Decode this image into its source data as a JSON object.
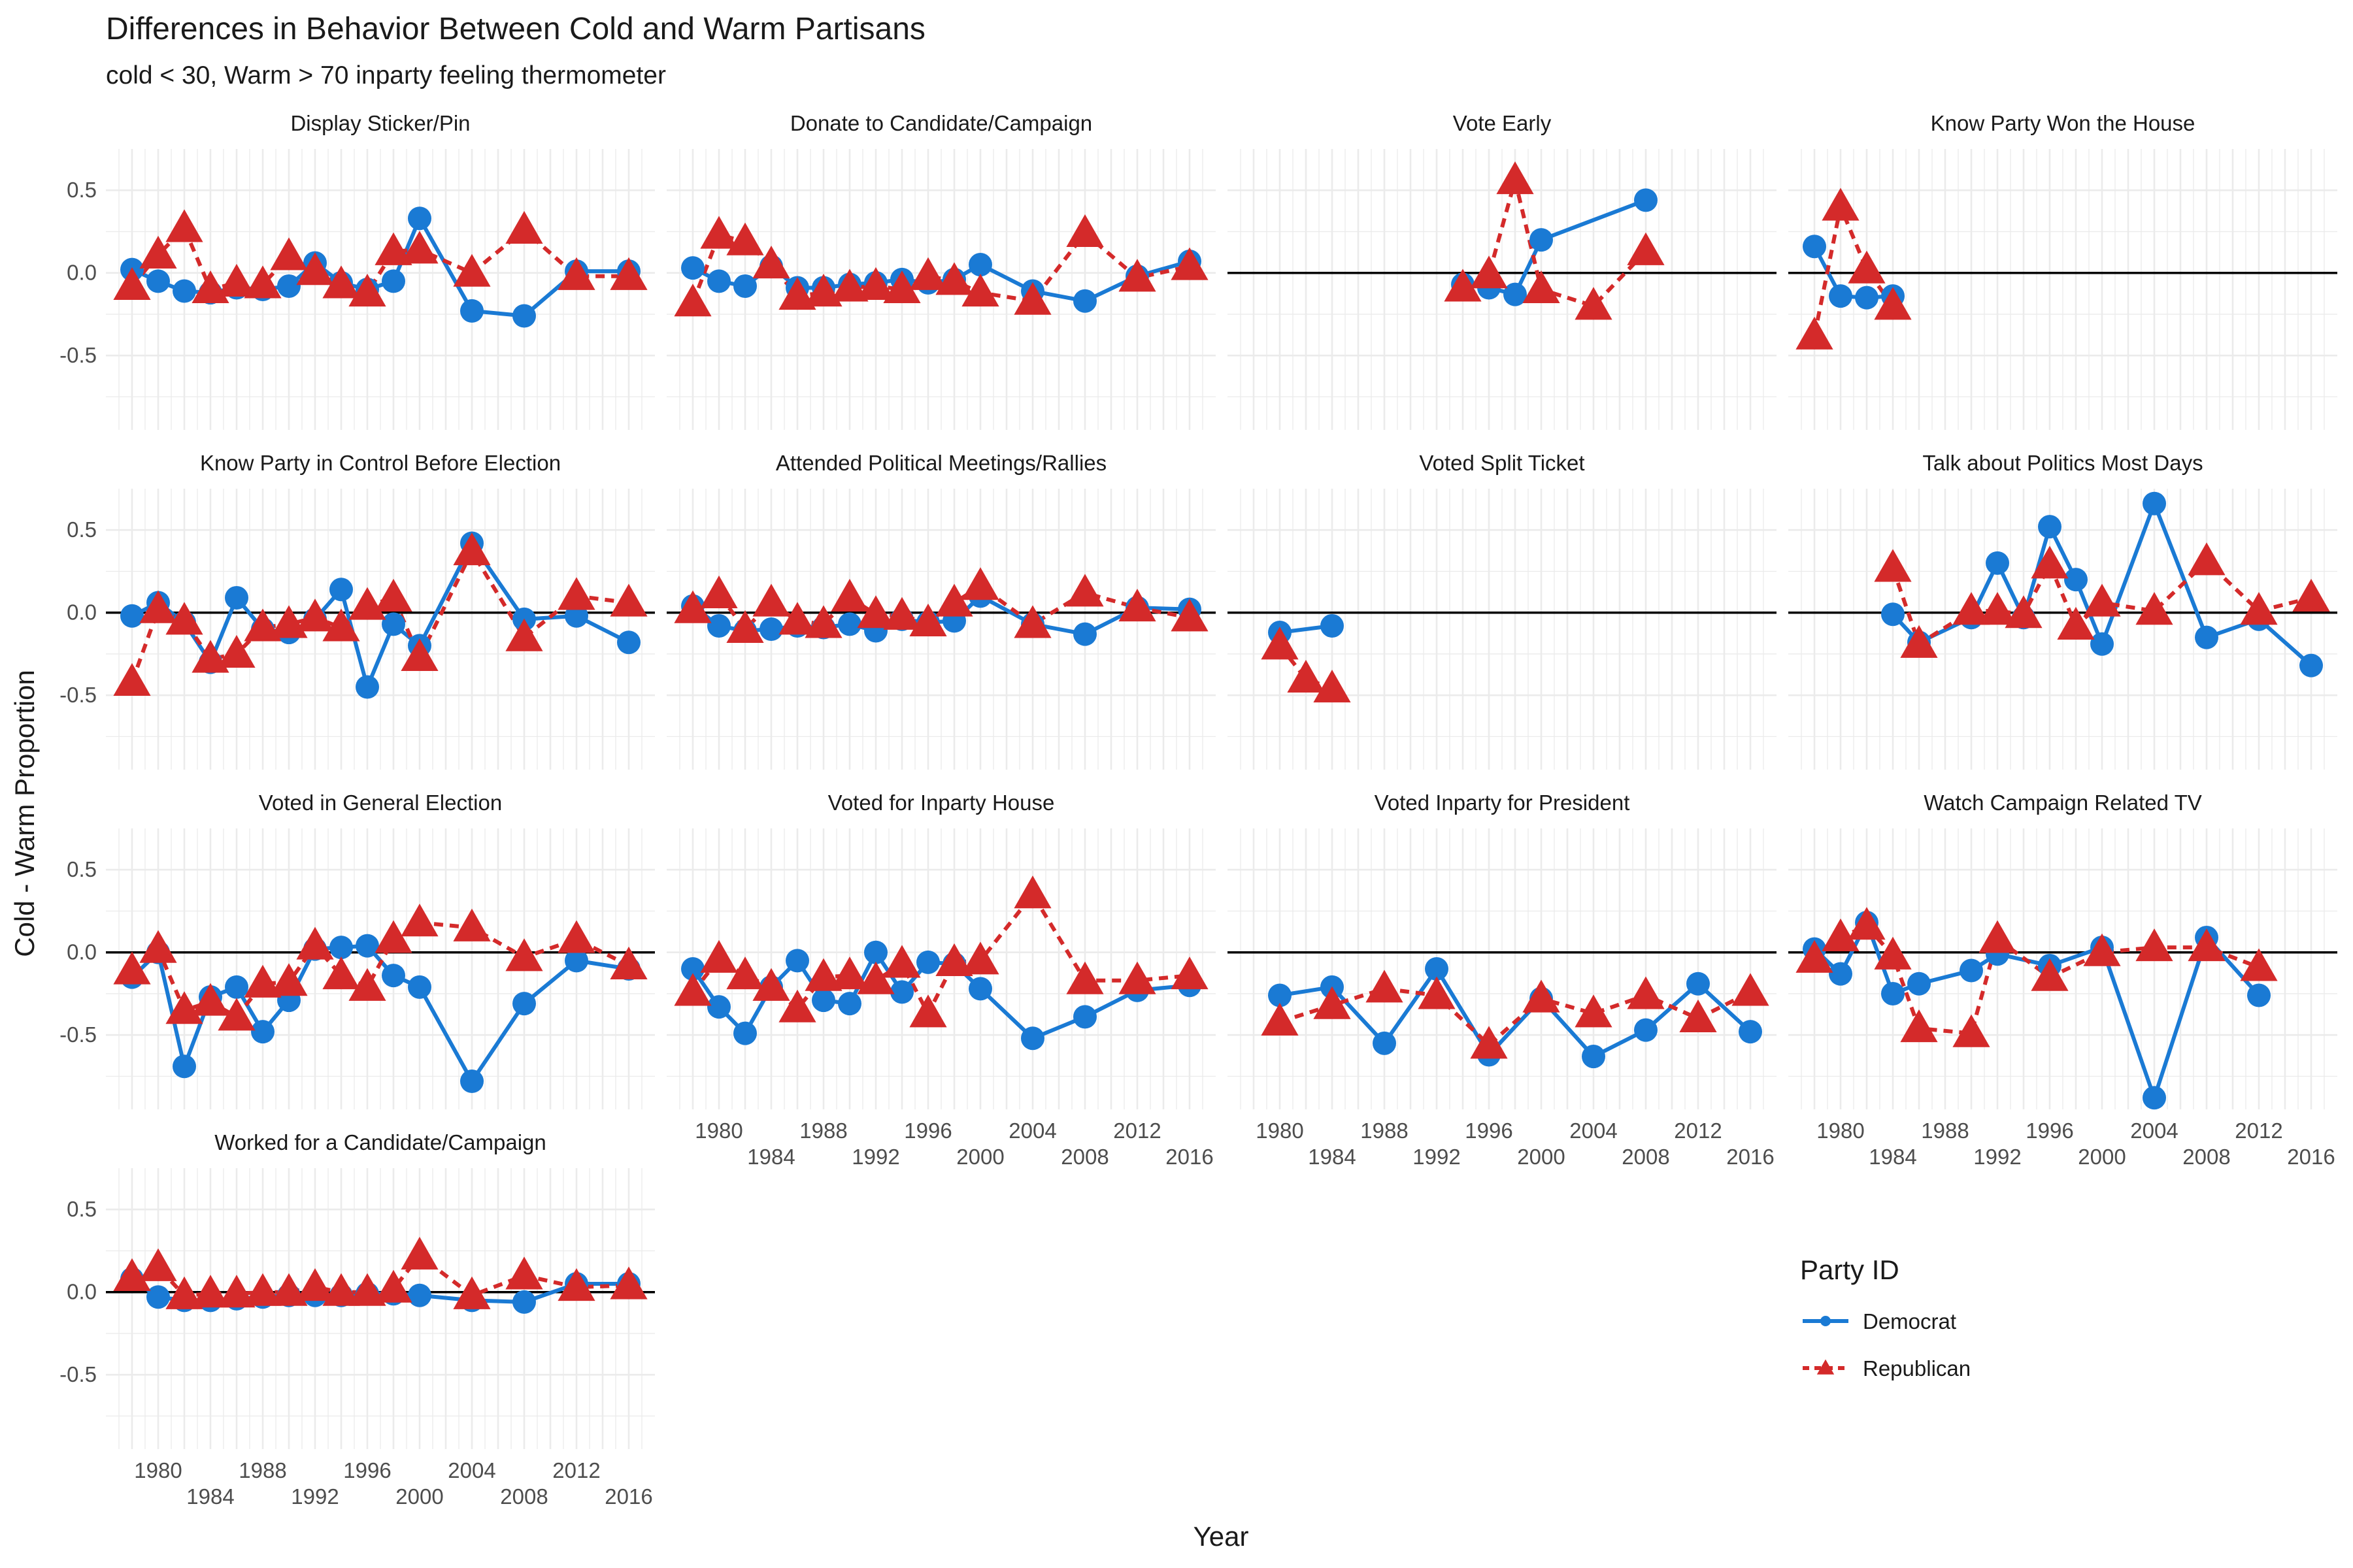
{
  "title": "Differences in Behavior Between Cold and Warm Partisans",
  "subtitle": "cold < 30, Warm > 70 inparty feeling thermometer",
  "chart_data": {
    "type": "line",
    "xlabel": "Year",
    "ylabel": "Cold - Warm Proportion",
    "xlim": [
      1976,
      2018
    ],
    "ylim": [
      -0.95,
      0.75
    ],
    "x_ticks": [
      1980,
      1984,
      1988,
      1992,
      1996,
      2000,
      2004,
      2008,
      2012,
      2016
    ],
    "y_ticks": [
      0.5,
      0.0,
      -0.5
    ],
    "y_tick_labels": [
      "0.5",
      "0.0",
      "-0.5"
    ],
    "legend": {
      "title": "Party ID",
      "position": "right",
      "entries": [
        {
          "name": "Democrat",
          "color": "#1a7ad4",
          "marker": "circle",
          "line": "solid"
        },
        {
          "name": "Republican",
          "color": "#d42a2a",
          "marker": "triangle",
          "line": "dashed"
        }
      ]
    },
    "grid": true,
    "facets": [
      {
        "title": "Display Sticker/Pin",
        "zero_line": false,
        "series": [
          {
            "name": "Democrat",
            "x": [
              1978,
              1980,
              1982,
              1984,
              1986,
              1988,
              1990,
              1992,
              1994,
              1996,
              1998,
              2000,
              2004,
              2008,
              2012,
              2016
            ],
            "y": [
              0.02,
              -0.05,
              -0.11,
              -0.12,
              -0.09,
              -0.1,
              -0.08,
              0.06,
              -0.06,
              -0.1,
              -0.05,
              0.33,
              -0.23,
              -0.26,
              0.01,
              0.01
            ]
          },
          {
            "name": "Republican",
            "x": [
              1978,
              1980,
              1982,
              1984,
              1986,
              1988,
              1990,
              1992,
              1994,
              1996,
              1998,
              2000,
              2004,
              2008,
              2012,
              2016
            ],
            "y": [
              -0.08,
              0.11,
              0.27,
              -0.1,
              -0.06,
              -0.07,
              0.1,
              0.01,
              -0.07,
              -0.12,
              0.13,
              0.14,
              0.0,
              0.26,
              -0.02,
              -0.02
            ]
          }
        ]
      },
      {
        "title": "Donate to Candidate/Campaign",
        "zero_line": false,
        "series": [
          {
            "name": "Democrat",
            "x": [
              1978,
              1980,
              1982,
              1984,
              1986,
              1988,
              1990,
              1992,
              1994,
              1996,
              1998,
              2000,
              2004,
              2008,
              2012,
              2016
            ],
            "y": [
              0.03,
              -0.05,
              -0.08,
              0.04,
              -0.09,
              -0.09,
              -0.07,
              -0.06,
              -0.04,
              -0.06,
              -0.04,
              0.05,
              -0.11,
              -0.17,
              -0.02,
              0.07
            ]
          },
          {
            "name": "Republican",
            "x": [
              1978,
              1980,
              1982,
              1984,
              1986,
              1988,
              1990,
              1992,
              1994,
              1996,
              1998,
              2000,
              2004,
              2008,
              2012,
              2016
            ],
            "y": [
              -0.18,
              0.23,
              0.19,
              0.05,
              -0.14,
              -0.12,
              -0.09,
              -0.08,
              -0.1,
              -0.02,
              -0.05,
              -0.12,
              -0.17,
              0.24,
              -0.03,
              0.04
            ]
          }
        ]
      },
      {
        "title": "Vote Early",
        "zero_line": true,
        "series": [
          {
            "name": "Democrat",
            "x": [
              1994,
              1996,
              1998,
              2000,
              2008
            ],
            "y": [
              -0.07,
              -0.09,
              -0.13,
              0.2,
              0.44
            ]
          },
          {
            "name": "Republican",
            "x": [
              1994,
              1996,
              1998,
              2000,
              2004,
              2008
            ],
            "y": [
              -0.09,
              -0.01,
              0.56,
              -0.1,
              -0.2,
              0.13
            ]
          }
        ]
      },
      {
        "title": "Know Party Won the House",
        "zero_line": true,
        "series": [
          {
            "name": "Democrat",
            "x": [
              1978,
              1980,
              1982,
              1984
            ],
            "y": [
              0.16,
              -0.14,
              -0.15,
              -0.14
            ]
          },
          {
            "name": "Republican",
            "x": [
              1978,
              1980,
              1982,
              1984
            ],
            "y": [
              -0.38,
              0.4,
              0.02,
              -0.2
            ]
          }
        ]
      },
      {
        "title": "Know Party in Control Before Election",
        "zero_line": true,
        "series": [
          {
            "name": "Democrat",
            "x": [
              1978,
              1980,
              1982,
              1984,
              1986,
              1988,
              1990,
              1992,
              1994,
              1996,
              1998,
              2000,
              2004,
              2008,
              2012,
              2016
            ],
            "y": [
              -0.02,
              0.06,
              -0.06,
              -0.3,
              0.09,
              -0.1,
              -0.12,
              -0.04,
              0.14,
              -0.45,
              -0.07,
              -0.2,
              0.42,
              -0.04,
              -0.02,
              -0.18
            ]
          },
          {
            "name": "Republican",
            "x": [
              1978,
              1980,
              1982,
              1984,
              1986,
              1988,
              1990,
              1992,
              1994,
              1996,
              1998,
              2000,
              2004,
              2008,
              2012,
              2016
            ],
            "y": [
              -0.42,
              0.02,
              -0.05,
              -0.28,
              -0.25,
              -0.09,
              -0.07,
              -0.03,
              -0.09,
              0.04,
              0.09,
              -0.27,
              0.37,
              -0.15,
              0.1,
              0.06
            ]
          }
        ]
      },
      {
        "title": "Attended Political Meetings/Rallies",
        "zero_line": true,
        "series": [
          {
            "name": "Democrat",
            "x": [
              1978,
              1980,
              1982,
              1984,
              1986,
              1988,
              1990,
              1992,
              1994,
              1996,
              1998,
              2000,
              2004,
              2008,
              2012,
              2016
            ],
            "y": [
              0.04,
              -0.08,
              -0.11,
              -0.1,
              -0.08,
              -0.09,
              -0.07,
              -0.11,
              -0.04,
              -0.06,
              -0.05,
              0.1,
              -0.07,
              -0.13,
              0.03,
              0.02
            ]
          },
          {
            "name": "Republican",
            "x": [
              1978,
              1980,
              1982,
              1984,
              1986,
              1988,
              1990,
              1992,
              1994,
              1996,
              1998,
              2000,
              2004,
              2008,
              2012,
              2016
            ],
            "y": [
              0.02,
              0.11,
              -0.1,
              0.06,
              -0.05,
              -0.07,
              0.09,
              -0.01,
              -0.02,
              -0.06,
              0.06,
              0.16,
              -0.07,
              0.12,
              0.03,
              -0.03
            ]
          }
        ]
      },
      {
        "title": "Voted Split Ticket",
        "zero_line": true,
        "series": [
          {
            "name": "Democrat",
            "x": [
              1980,
              1984
            ],
            "y": [
              -0.12,
              -0.08
            ]
          },
          {
            "name": "Republican",
            "x": [
              1980,
              1982,
              1984
            ],
            "y": [
              -0.2,
              -0.4,
              -0.46
            ]
          }
        ]
      },
      {
        "title": "Talk about Politics Most Days",
        "zero_line": true,
        "series": [
          {
            "name": "Democrat",
            "x": [
              1984,
              1986,
              1990,
              1992,
              1994,
              1996,
              1998,
              2000,
              2004,
              2008,
              2012,
              2016
            ],
            "y": [
              -0.01,
              -0.18,
              -0.03,
              0.3,
              -0.03,
              0.52,
              0.2,
              -0.19,
              0.66,
              -0.15,
              -0.04,
              -0.32
            ]
          },
          {
            "name": "Republican",
            "x": [
              1984,
              1986,
              1990,
              1992,
              1994,
              1996,
              1998,
              2000,
              2004,
              2008,
              2012,
              2016
            ],
            "y": [
              0.27,
              -0.19,
              0.01,
              0.01,
              -0.01,
              0.29,
              -0.08,
              0.06,
              0.01,
              0.31,
              0.01,
              0.09
            ]
          }
        ]
      },
      {
        "title": "Voted in General Election",
        "zero_line": true,
        "series": [
          {
            "name": "Democrat",
            "x": [
              1978,
              1980,
              1982,
              1984,
              1986,
              1988,
              1990,
              1992,
              1994,
              1996,
              1998,
              2000,
              2004,
              2008,
              2012,
              2016
            ],
            "y": [
              -0.15,
              0.0,
              -0.69,
              -0.27,
              -0.21,
              -0.48,
              -0.29,
              0.02,
              0.03,
              0.04,
              -0.14,
              -0.21,
              -0.78,
              -0.31,
              -0.05,
              -0.1
            ]
          },
          {
            "name": "Republican",
            "x": [
              1978,
              1980,
              1982,
              1984,
              1986,
              1988,
              1990,
              1992,
              1994,
              1996,
              1998,
              2000,
              2004,
              2008,
              2012,
              2016
            ],
            "y": [
              -0.11,
              0.02,
              -0.35,
              -0.3,
              -0.39,
              -0.19,
              -0.18,
              0.04,
              -0.14,
              -0.21,
              0.08,
              0.18,
              0.15,
              -0.03,
              0.08,
              -0.08
            ]
          }
        ]
      },
      {
        "title": "Voted for Inparty House",
        "zero_line": false,
        "series": [
          {
            "name": "Democrat",
            "x": [
              1978,
              1980,
              1982,
              1984,
              1986,
              1988,
              1990,
              1992,
              1994,
              1996,
              1998,
              2000,
              2004,
              2008,
              2012,
              2016
            ],
            "y": [
              -0.1,
              -0.33,
              -0.49,
              -0.21,
              -0.05,
              -0.29,
              -0.31,
              0.0,
              -0.24,
              -0.06,
              -0.07,
              -0.22,
              -0.52,
              -0.39,
              -0.23,
              -0.2
            ]
          },
          {
            "name": "Republican",
            "x": [
              1978,
              1980,
              1982,
              1984,
              1986,
              1988,
              1990,
              1992,
              1994,
              1996,
              1998,
              2000,
              2004,
              2008,
              2012,
              2016
            ],
            "y": [
              -0.24,
              -0.04,
              -0.14,
              -0.21,
              -0.34,
              -0.15,
              -0.14,
              -0.17,
              -0.07,
              -0.37,
              -0.06,
              -0.05,
              0.35,
              -0.17,
              -0.17,
              -0.14
            ]
          }
        ]
      },
      {
        "title": "Voted Inparty for President",
        "zero_line": true,
        "series": [
          {
            "name": "Democrat",
            "x": [
              1980,
              1984,
              1988,
              1992,
              1996,
              2000,
              2004,
              2008,
              2012,
              2016
            ],
            "y": [
              -0.26,
              -0.21,
              -0.55,
              -0.1,
              -0.62,
              -0.28,
              -0.63,
              -0.47,
              -0.19,
              -0.48
            ]
          },
          {
            "name": "Republican",
            "x": [
              1980,
              1984,
              1988,
              1992,
              1996,
              2000,
              2004,
              2008,
              2012,
              2016
            ],
            "y": [
              -0.42,
              -0.32,
              -0.22,
              -0.26,
              -0.56,
              -0.28,
              -0.37,
              -0.26,
              -0.4,
              -0.24
            ]
          }
        ]
      },
      {
        "title": "Watch Campaign Related TV",
        "zero_line": true,
        "series": [
          {
            "name": "Democrat",
            "x": [
              1978,
              1980,
              1982,
              1984,
              1986,
              1990,
              1992,
              1996,
              2000,
              2004,
              2008,
              2012
            ],
            "y": [
              0.02,
              -0.13,
              0.18,
              -0.25,
              -0.19,
              -0.11,
              -0.01,
              -0.08,
              0.03,
              -0.88,
              0.09,
              -0.26
            ]
          },
          {
            "name": "Republican",
            "x": [
              1978,
              1980,
              1982,
              1984,
              1986,
              1990,
              1992,
              1996,
              2000,
              2004,
              2008,
              2012
            ],
            "y": [
              -0.04,
              0.09,
              0.16,
              -0.02,
              -0.46,
              -0.49,
              0.08,
              -0.15,
              0.0,
              0.03,
              0.03,
              -0.09
            ]
          }
        ]
      },
      {
        "title": "Worked for a Candidate/Campaign",
        "zero_line": true,
        "series": [
          {
            "name": "Democrat",
            "x": [
              1978,
              1980,
              1982,
              1984,
              1986,
              1988,
              1990,
              1992,
              1994,
              1996,
              1998,
              2000,
              2004,
              2008,
              2012,
              2016
            ],
            "y": [
              0.08,
              -0.03,
              -0.05,
              -0.05,
              -0.04,
              -0.03,
              -0.02,
              -0.02,
              -0.02,
              -0.01,
              -0.01,
              -0.02,
              -0.05,
              -0.06,
              0.05,
              0.05
            ]
          },
          {
            "name": "Republican",
            "x": [
              1978,
              1980,
              1982,
              1984,
              1986,
              1988,
              1990,
              1992,
              1994,
              1996,
              1998,
              2000,
              2004,
              2008,
              2012,
              2016
            ],
            "y": [
              0.09,
              0.15,
              -0.02,
              -0.01,
              -0.01,
              0.0,
              0.0,
              0.03,
              0.0,
              0.0,
              0.02,
              0.22,
              -0.02,
              0.1,
              0.03,
              0.04
            ]
          }
        ]
      }
    ]
  }
}
